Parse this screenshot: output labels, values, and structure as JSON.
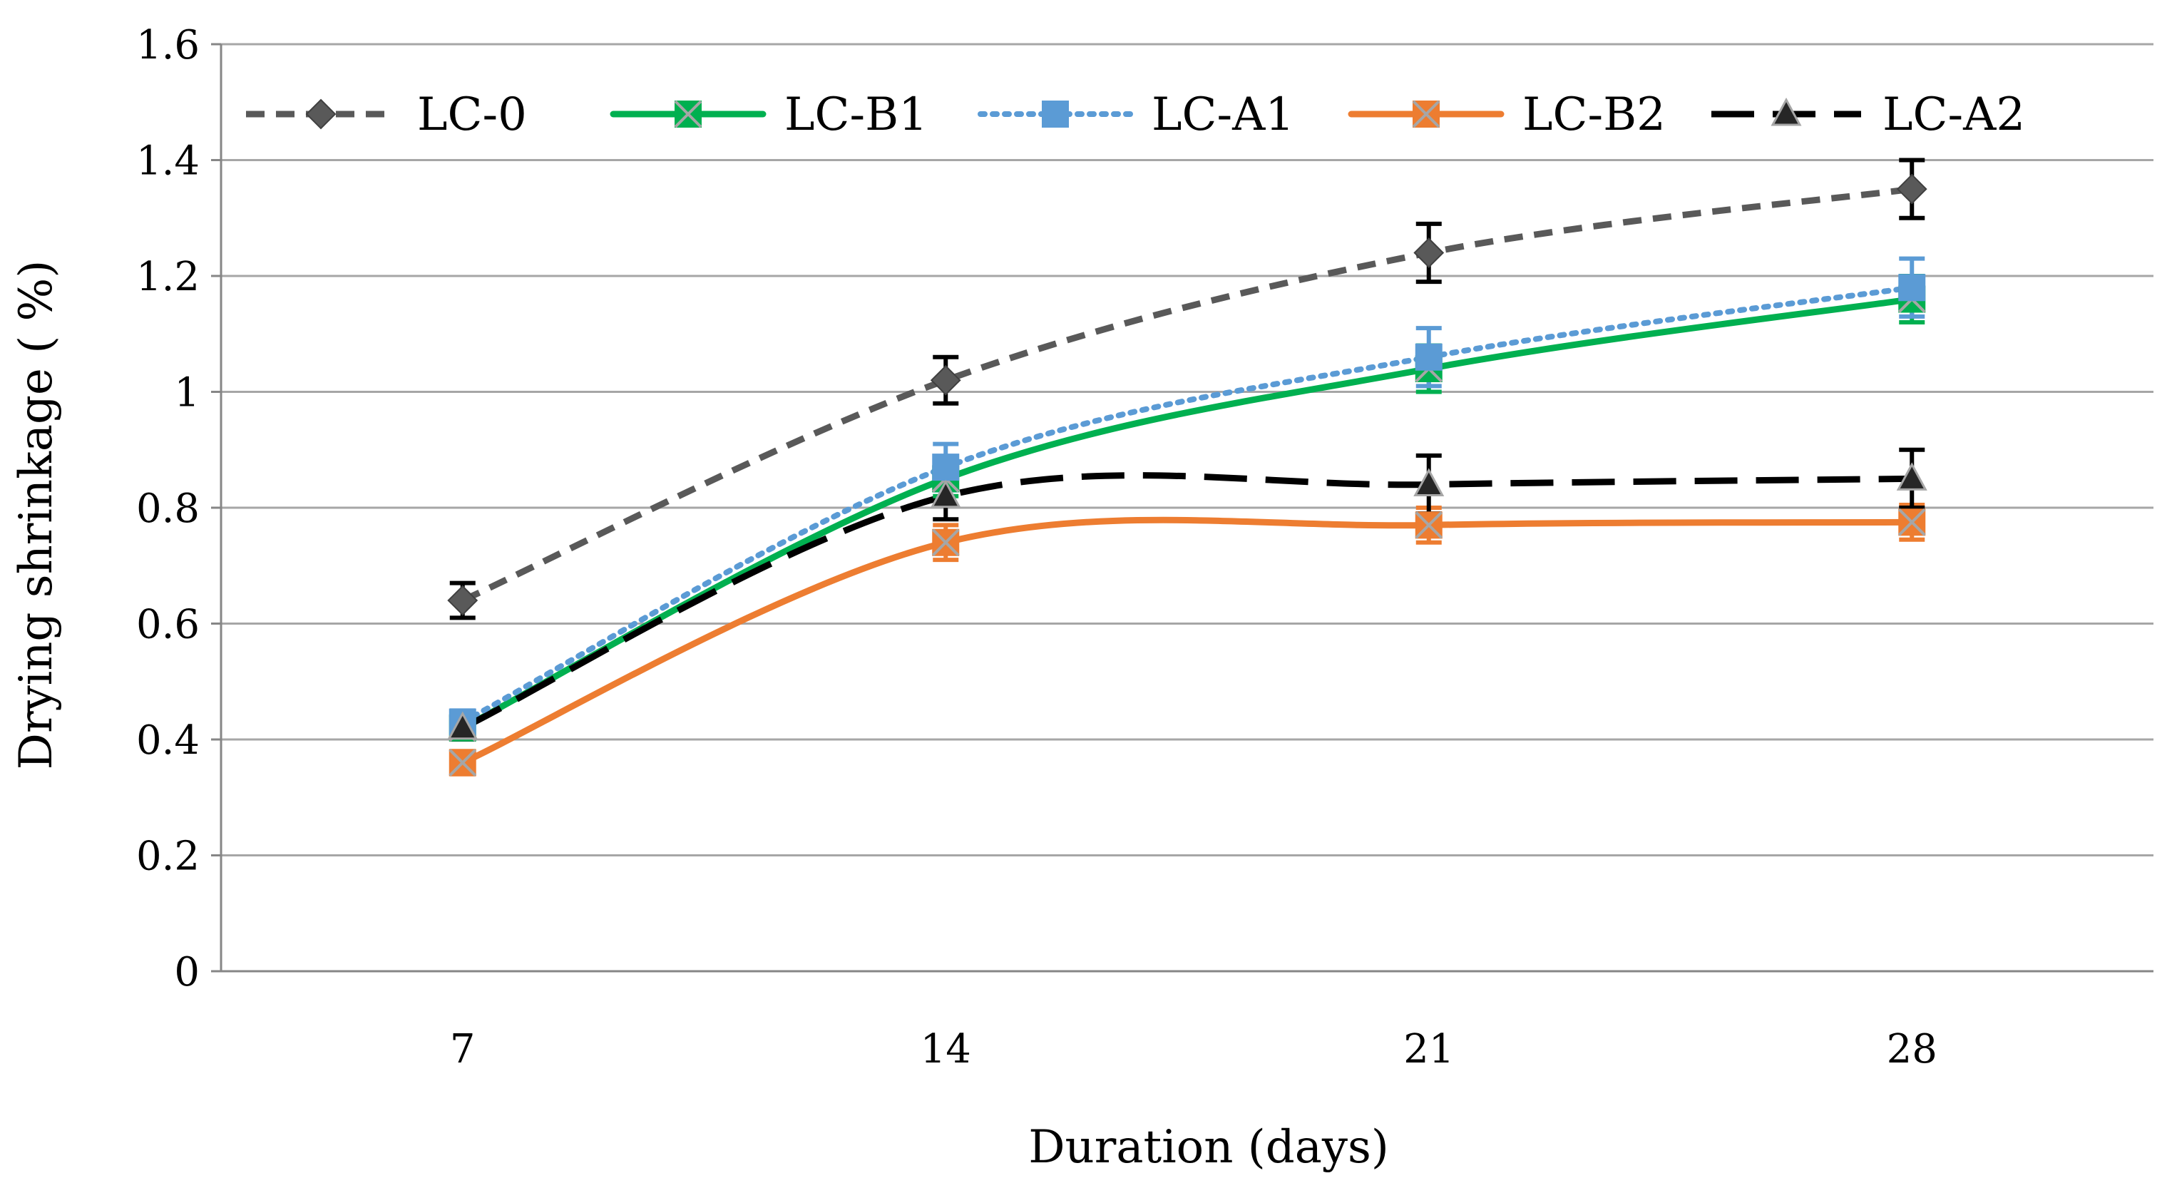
{
  "chart_data": {
    "type": "line",
    "title": "",
    "xlabel": "Duration (days)",
    "ylabel": "Drying shrinkage ( %)",
    "categories": [
      "7",
      "14",
      "21",
      "28"
    ],
    "yticks": [
      "0",
      "0.2",
      "0.4",
      "0.6",
      "0.8",
      "1",
      "1.2",
      "1.4",
      "1.6"
    ],
    "ylim": [
      0,
      1.6
    ],
    "grid": true,
    "legend_position": "top",
    "series": [
      {
        "name": "LC-0",
        "values": [
          0.64,
          1.02,
          1.24,
          1.35
        ],
        "errors": [
          0.03,
          0.04,
          0.05,
          0.05
        ],
        "color": "#595959",
        "dash": "short-dash",
        "marker": "diamond",
        "smooth": true
      },
      {
        "name": "LC-B1",
        "values": [
          0.42,
          0.85,
          1.04,
          1.16
        ],
        "errors": [
          0.02,
          0.03,
          0.04,
          0.04
        ],
        "color": "#00b050",
        "dash": "solid",
        "marker": "x-square",
        "smooth": true
      },
      {
        "name": "LC-A1",
        "values": [
          0.43,
          0.87,
          1.06,
          1.18
        ],
        "errors": [
          0.02,
          0.04,
          0.05,
          0.05
        ],
        "color": "#5b9bd5",
        "dash": "dotted",
        "marker": "square",
        "smooth": true
      },
      {
        "name": "LC-B2",
        "values": [
          0.36,
          0.74,
          0.77,
          0.775
        ],
        "errors": [
          0.02,
          0.03,
          0.03,
          0.03
        ],
        "color": "#ed7d31",
        "dash": "solid",
        "marker": "x-square",
        "smooth": true
      },
      {
        "name": "LC-A2",
        "values": [
          0.42,
          0.82,
          0.84,
          0.85
        ],
        "errors": [
          0.02,
          0.04,
          0.05,
          0.05
        ],
        "color": "#000000",
        "dash": "long-dash",
        "marker": "triangle",
        "smooth": true
      }
    ]
  }
}
